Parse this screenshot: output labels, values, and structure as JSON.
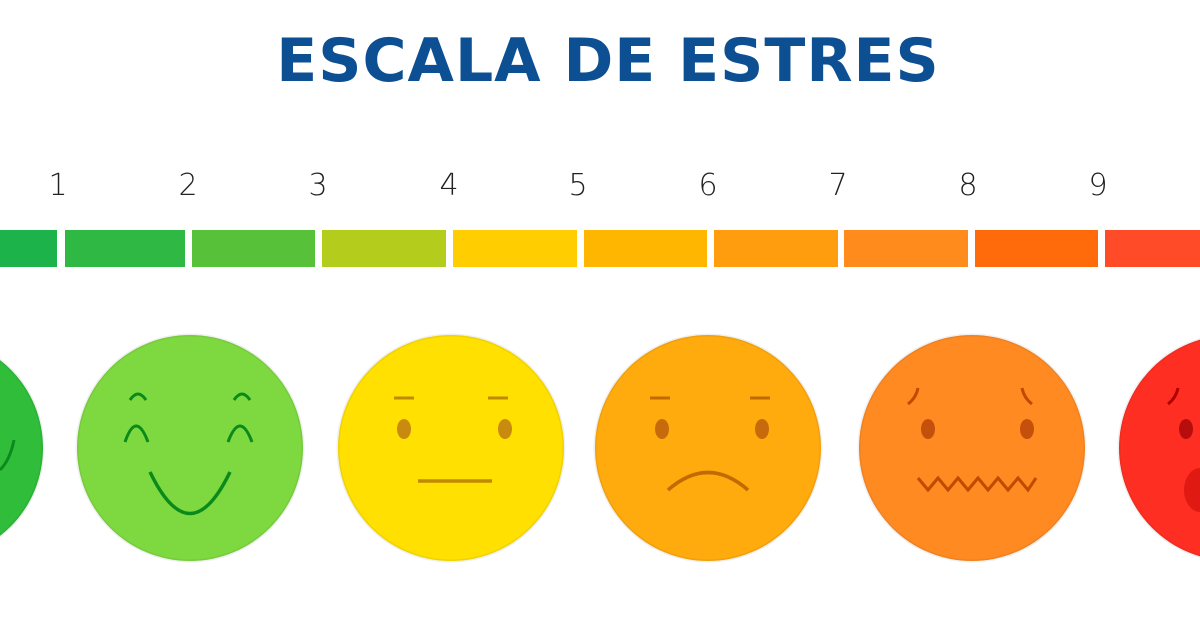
{
  "title": "ESCALA DE ESTRES",
  "scale_numbers": [
    "1",
    "2",
    "3",
    "4",
    "5",
    "6",
    "7",
    "8",
    "9"
  ],
  "segment_colors": [
    "#1db34b",
    "#2fb843",
    "#57c13a",
    "#b4cc1b",
    "#ffcd00",
    "#ffb600",
    "#ff9d0f",
    "#ff8b1d",
    "#ff6a0b",
    "#ff4b27"
  ],
  "faces": [
    {
      "expression": "happy",
      "color": "#2fbd3a"
    },
    {
      "expression": "very-happy",
      "color": "#7ed83f"
    },
    {
      "expression": "neutral",
      "color": "#ffe000"
    },
    {
      "expression": "sad",
      "color": "#ffab0d"
    },
    {
      "expression": "anxious",
      "color": "#ff8a22"
    },
    {
      "expression": "distressed",
      "color": "#ff2e22"
    }
  ]
}
